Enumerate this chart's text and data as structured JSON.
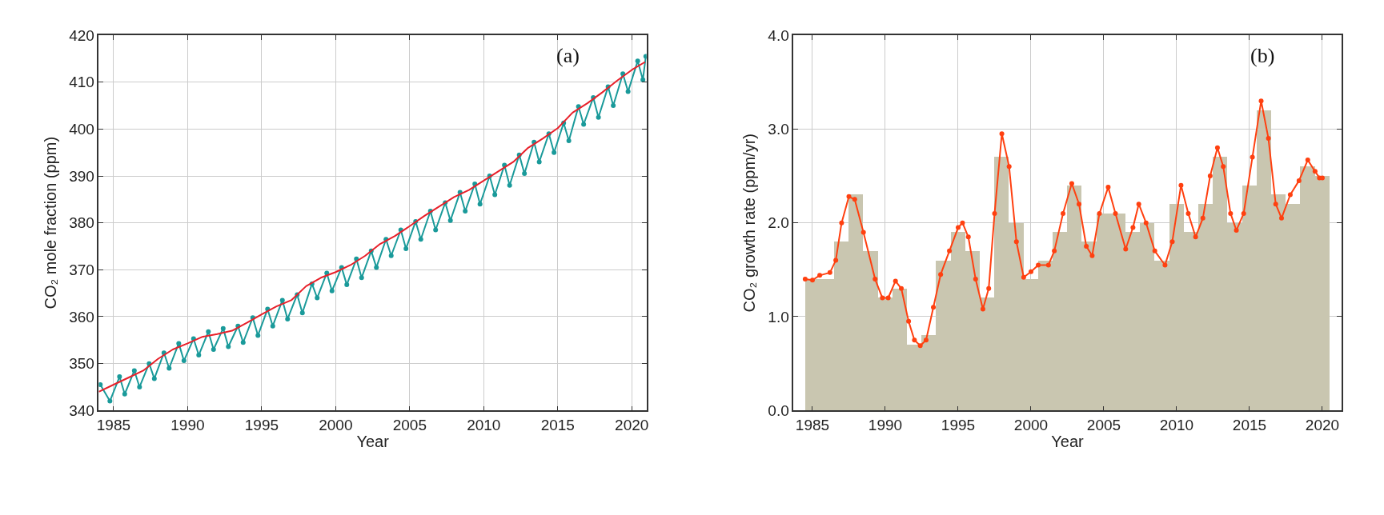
{
  "chart_data": [
    {
      "type": "line",
      "xlabel": "Year",
      "ylabel": "CO₂ mole fraction (ppm)",
      "annotations": [
        "(a)"
      ],
      "xlim": [
        1984,
        2021
      ],
      "xticks": [
        1985,
        1990,
        1995,
        2000,
        2005,
        2010,
        2015,
        2020
      ],
      "ylim": [
        340,
        420
      ],
      "yticks": [
        340,
        350,
        360,
        370,
        380,
        390,
        400,
        410,
        420
      ],
      "grid": true,
      "series": [
        {
          "color": "#1a9a9a",
          "marker": "circle",
          "x": [
            1984.1,
            1984.75,
            1985.4,
            1985.75,
            1986.4,
            1986.75,
            1987.4,
            1987.75,
            1988.4,
            1988.75,
            1989.4,
            1989.75,
            1990.4,
            1990.75,
            1991.4,
            1991.75,
            1992.4,
            1992.75,
            1993.4,
            1993.75,
            1994.4,
            1994.75,
            1995.4,
            1995.75,
            1996.4,
            1996.75,
            1997.4,
            1997.75,
            1998.4,
            1998.75,
            1999.4,
            1999.75,
            2000.4,
            2000.75,
            2001.4,
            2001.75,
            2002.4,
            2002.75,
            2003.4,
            2003.75,
            2004.4,
            2004.75,
            2005.4,
            2005.75,
            2006.4,
            2006.75,
            2007.4,
            2007.75,
            2008.4,
            2008.75,
            2009.4,
            2009.75,
            2010.4,
            2010.75,
            2011.4,
            2011.75,
            2012.4,
            2012.75,
            2013.4,
            2013.75,
            2014.4,
            2014.75,
            2015.4,
            2015.75,
            2016.4,
            2016.75,
            2017.4,
            2017.75,
            2018.4,
            2018.75,
            2019.4,
            2019.75,
            2020.4,
            2020.75,
            2020.95
          ],
          "values": [
            345.5,
            342.0,
            347.2,
            343.5,
            348.5,
            345.0,
            350.0,
            346.8,
            352.3,
            349.0,
            354.3,
            350.6,
            355.3,
            351.8,
            356.8,
            353.0,
            357.5,
            353.6,
            358.0,
            354.5,
            359.8,
            356.0,
            361.6,
            358.0,
            363.5,
            359.5,
            364.7,
            360.8,
            367.0,
            364.0,
            369.3,
            365.5,
            370.5,
            366.8,
            372.3,
            368.3,
            374.0,
            370.5,
            376.5,
            373.0,
            378.5,
            374.5,
            380.3,
            376.5,
            382.5,
            378.5,
            384.3,
            380.5,
            386.5,
            382.5,
            388.3,
            384.0,
            390.0,
            386.0,
            392.3,
            388.0,
            394.5,
            390.5,
            397.2,
            393.0,
            399.0,
            395.0,
            401.3,
            397.5,
            404.8,
            401.0,
            406.7,
            402.5,
            409.0,
            405.0,
            411.8,
            408.0,
            414.5,
            410.5,
            415.5
          ]
        },
        {
          "color": "#e8202a",
          "marker": "none",
          "x": [
            1984,
            1985,
            1986,
            1987,
            1988,
            1989,
            1990,
            1991,
            1992,
            1993,
            1994,
            1995,
            1996,
            1997,
            1998,
            1999,
            2000,
            2001,
            2002,
            2003,
            2004,
            2005,
            2006,
            2007,
            2008,
            2009,
            2010,
            2011,
            2012,
            2013,
            2014,
            2015,
            2016,
            2017,
            2018,
            2019,
            2020,
            2020.9
          ],
          "values": [
            344.0,
            345.5,
            347.0,
            348.5,
            351.0,
            353.0,
            354.3,
            355.7,
            356.3,
            357.0,
            358.7,
            360.5,
            362.2,
            363.5,
            366.5,
            368.3,
            369.5,
            371.0,
            373.0,
            375.5,
            377.2,
            379.3,
            381.5,
            383.5,
            385.5,
            387.0,
            389.0,
            391.0,
            393.0,
            396.0,
            398.0,
            400.2,
            403.5,
            405.5,
            407.8,
            410.3,
            412.6,
            414.3
          ]
        }
      ]
    },
    {
      "type": "bar",
      "xlabel": "Year",
      "ylabel": "CO₂ growth rate (ppm/yr)",
      "annotations": [
        "(b)"
      ],
      "xlim": [
        1983.7,
        2021.3
      ],
      "xticks": [
        1985,
        1990,
        1995,
        2000,
        2005,
        2010,
        2015,
        2020
      ],
      "ylim": [
        0,
        4
      ],
      "yticks": [
        {
          "value": 0,
          "label": "0.0"
        },
        {
          "value": 1,
          "label": "1.0"
        },
        {
          "value": 2,
          "label": "2.0"
        },
        {
          "value": 3,
          "label": "3.0"
        },
        {
          "value": 4,
          "label": "4.0"
        }
      ],
      "grid": true,
      "series": [
        {
          "type": "bar",
          "color": "#c9c6b0",
          "x": [
            1985,
            1986,
            1987,
            1988,
            1989,
            1990,
            1991,
            1992,
            1993,
            1994,
            1995,
            1996,
            1997,
            1998,
            1999,
            2000,
            2001,
            2002,
            2003,
            2004,
            2005,
            2006,
            2007,
            2008,
            2009,
            2010,
            2011,
            2012,
            2013,
            2014,
            2015,
            2016,
            2017,
            2018,
            2019,
            2020
          ],
          "values": [
            1.4,
            1.4,
            1.8,
            2.3,
            1.7,
            1.2,
            1.3,
            0.7,
            0.8,
            1.6,
            1.9,
            1.7,
            1.2,
            2.7,
            2.0,
            1.4,
            1.6,
            1.9,
            2.4,
            1.8,
            2.1,
            2.1,
            1.9,
            2.0,
            1.6,
            2.2,
            1.9,
            2.2,
            2.7,
            2.0,
            2.4,
            3.2,
            2.3,
            2.2,
            2.6,
            2.5
          ]
        },
        {
          "type": "line",
          "color": "#ff4010",
          "marker": "circle",
          "x": [
            1984.5,
            1985,
            1985.5,
            1986.2,
            1986.6,
            1987,
            1987.5,
            1987.9,
            1988.5,
            1989.3,
            1989.8,
            1990.2,
            1990.7,
            1991.1,
            1991.6,
            1992.0,
            1992.4,
            1992.8,
            1993.3,
            1993.8,
            1994.4,
            1995.0,
            1995.3,
            1995.7,
            1996.2,
            1996.7,
            1997.1,
            1997.5,
            1998.0,
            1998.5,
            1999.0,
            1999.5,
            2000.0,
            2000.5,
            2001.2,
            2001.6,
            2002.2,
            2002.8,
            2003.3,
            2003.8,
            2004.2,
            2004.7,
            2005.3,
            2005.8,
            2006.5,
            2007.0,
            2007.4,
            2007.9,
            2008.5,
            2009.2,
            2009.7,
            2010.3,
            2010.8,
            2011.3,
            2011.8,
            2012.3,
            2012.8,
            2013.2,
            2013.7,
            2014.1,
            2014.6,
            2015.2,
            2015.8,
            2016.3,
            2016.8,
            2017.2,
            2017.8,
            2018.4,
            2019.0,
            2019.5,
            2019.8,
            2020.0
          ],
          "values": [
            1.4,
            1.39,
            1.44,
            1.47,
            1.6,
            2.0,
            2.28,
            2.25,
            1.9,
            1.4,
            1.2,
            1.2,
            1.38,
            1.3,
            0.95,
            0.75,
            0.69,
            0.75,
            1.1,
            1.45,
            1.7,
            1.95,
            2.0,
            1.85,
            1.4,
            1.08,
            1.3,
            2.1,
            2.95,
            2.6,
            1.8,
            1.42,
            1.48,
            1.55,
            1.55,
            1.7,
            2.1,
            2.42,
            2.2,
            1.75,
            1.65,
            2.1,
            2.38,
            2.1,
            1.72,
            1.95,
            2.2,
            2.0,
            1.7,
            1.55,
            1.8,
            2.4,
            2.1,
            1.85,
            2.05,
            2.5,
            2.8,
            2.6,
            2.1,
            1.92,
            2.1,
            2.7,
            3.3,
            2.9,
            2.2,
            2.05,
            2.3,
            2.45,
            2.67,
            2.55,
            2.48,
            2.48
          ]
        }
      ]
    }
  ]
}
